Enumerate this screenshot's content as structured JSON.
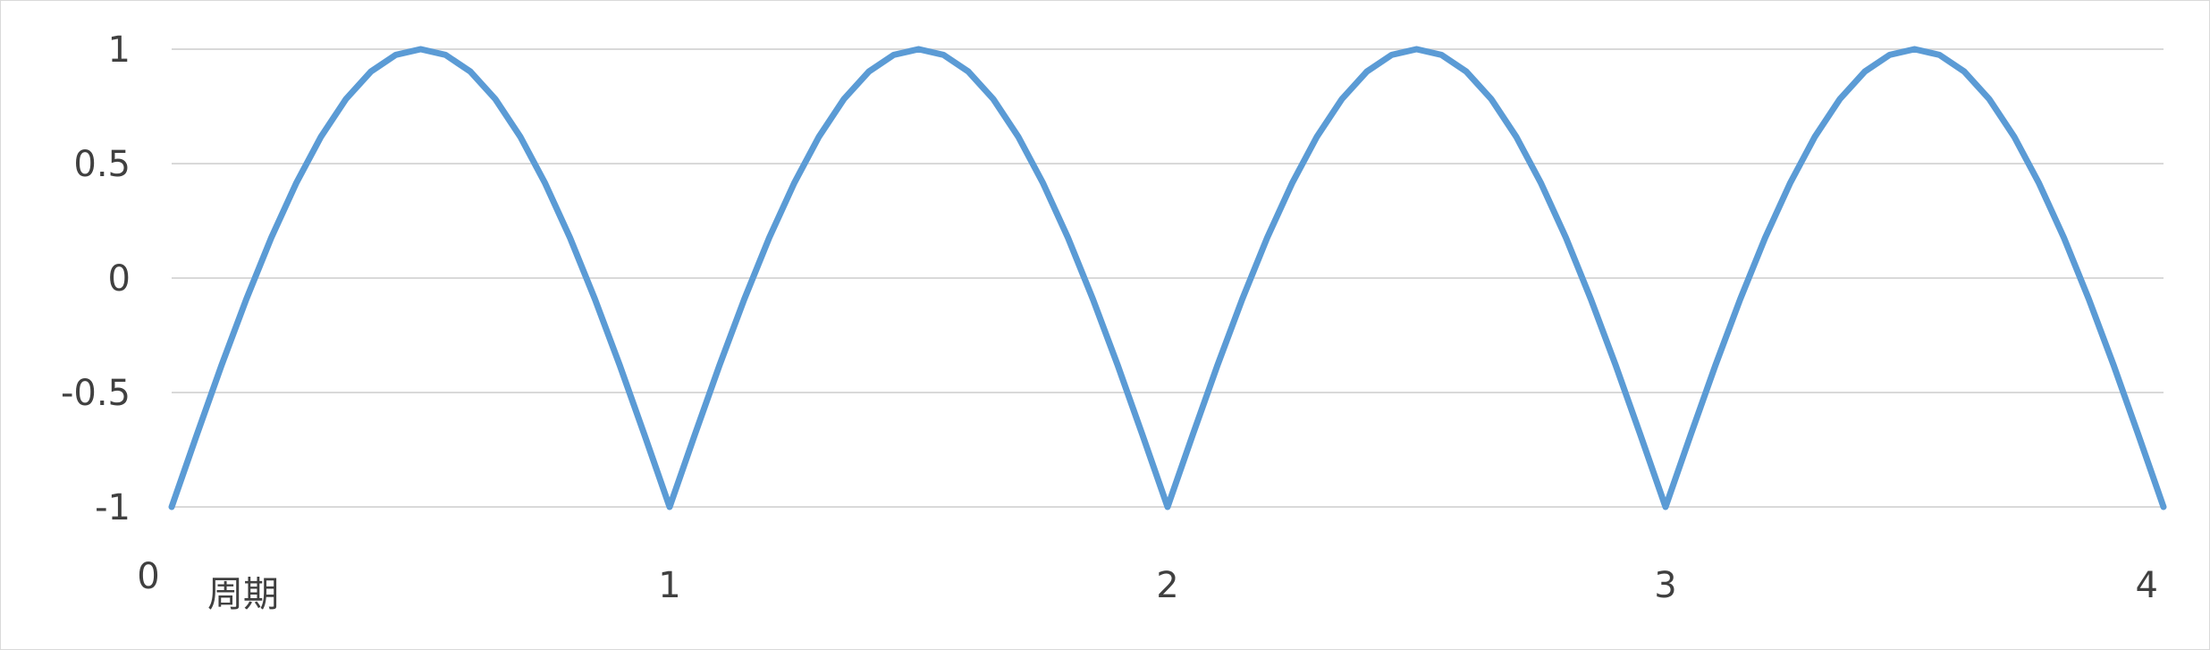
{
  "chart_data": {
    "type": "line",
    "title": "",
    "xlabel": "",
    "ylabel": "",
    "xlim": [
      0,
      4
    ],
    "ylim": [
      -1,
      1
    ],
    "x_ticks": [
      {
        "value": 0,
        "label": "0"
      },
      {
        "value": 1,
        "label": "1"
      },
      {
        "value": 2,
        "label": "2"
      },
      {
        "value": 3,
        "label": "3"
      },
      {
        "value": 4,
        "label": "4"
      }
    ],
    "y_ticks": [
      {
        "value": 1,
        "label": "1"
      },
      {
        "value": 0.5,
        "label": "0.5"
      },
      {
        "value": 0,
        "label": "0"
      },
      {
        "value": -0.5,
        "label": "-0.5"
      },
      {
        "value": -1,
        "label": "-1"
      }
    ],
    "annotation": "周期",
    "grid": "horizontal",
    "legend": "none",
    "series_color": "#5b9bd5",
    "grid_color": "#d9d9d9",
    "text_color": "#404040",
    "series": [
      {
        "name": "",
        "x": [
          0,
          0.05,
          0.1,
          0.15,
          0.2,
          0.25,
          0.3,
          0.35,
          0.4,
          0.45,
          0.5,
          0.55,
          0.6,
          0.65,
          0.7,
          0.75,
          0.8,
          0.85,
          0.9,
          0.95,
          1.0,
          1.05,
          1.1,
          1.15,
          1.2,
          1.25,
          1.3,
          1.35,
          1.4,
          1.45,
          1.5,
          1.55,
          1.6,
          1.65,
          1.7,
          1.75,
          1.8,
          1.85,
          1.9,
          1.95,
          2.0,
          2.05,
          2.1,
          2.15,
          2.2,
          2.25,
          2.3,
          2.35,
          2.4,
          2.45,
          2.5,
          2.55,
          2.6,
          2.65,
          2.7,
          2.75,
          2.8,
          2.85,
          2.9,
          2.95,
          3.0,
          3.05,
          3.1,
          3.15,
          3.2,
          3.25,
          3.3,
          3.35,
          3.4,
          3.45,
          3.5,
          3.55,
          3.6,
          3.65,
          3.7,
          3.75,
          3.8,
          3.85,
          3.9,
          3.95,
          4.0
        ],
        "y": [
          -1,
          -0.688,
          -0.382,
          -0.092,
          0.176,
          0.414,
          0.618,
          0.782,
          0.902,
          0.975,
          1,
          0.975,
          0.902,
          0.782,
          0.618,
          0.414,
          0.176,
          -0.092,
          -0.382,
          -0.688,
          -1,
          -0.688,
          -0.382,
          -0.092,
          0.176,
          0.414,
          0.618,
          0.782,
          0.902,
          0.975,
          1,
          0.975,
          0.902,
          0.782,
          0.618,
          0.414,
          0.176,
          -0.092,
          -0.382,
          -0.688,
          -1,
          -0.688,
          -0.382,
          -0.092,
          0.176,
          0.414,
          0.618,
          0.782,
          0.902,
          0.975,
          1,
          0.975,
          0.902,
          0.782,
          0.618,
          0.414,
          0.176,
          -0.092,
          -0.382,
          -0.688,
          -1,
          -0.688,
          -0.382,
          -0.092,
          0.176,
          0.414,
          0.618,
          0.782,
          0.902,
          0.975,
          1,
          0.975,
          0.902,
          0.782,
          0.618,
          0.414,
          0.176,
          -0.092,
          -0.382,
          -0.688,
          -1
        ]
      }
    ]
  }
}
